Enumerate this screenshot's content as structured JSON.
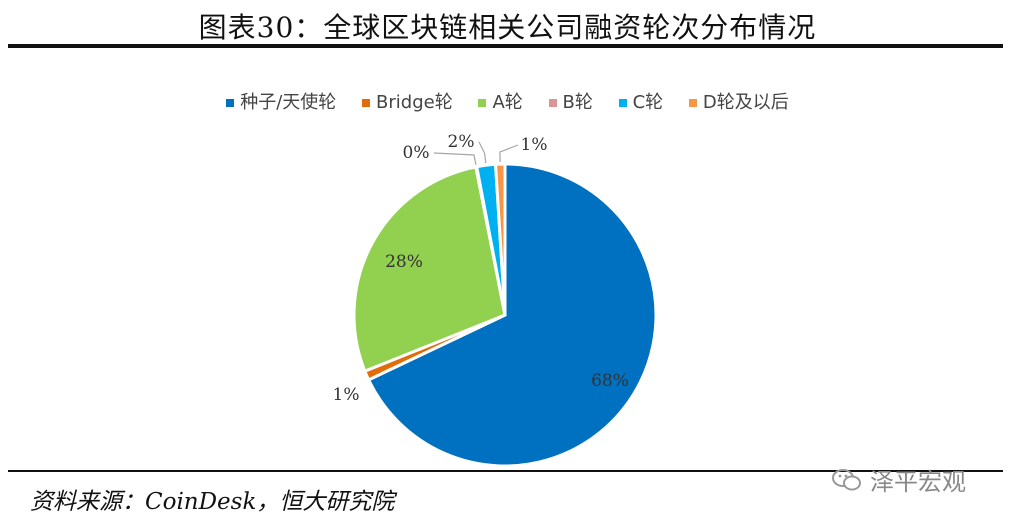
{
  "figure": {
    "title": "图表30：全球区块链相关公司融资轮次分布情况",
    "source": "资料来源：CoinDesk，恒大研究院",
    "watermark": "泽平宏观"
  },
  "chart_data": {
    "type": "pie",
    "title": "图表30：全球区块链相关公司融资轮次分布情况",
    "legend_position": "top",
    "categories": [
      "种子/天使轮",
      "Bridge轮",
      "A轮",
      "B轮",
      "C轮",
      "D轮及以后"
    ],
    "values": [
      68,
      1,
      28,
      0,
      2,
      1
    ],
    "labels": [
      "68%",
      "1%",
      "28%",
      "0%",
      "2%",
      "1%"
    ],
    "colors": [
      "#0070C0",
      "#E26B0A",
      "#92D050",
      "#D99694",
      "#00B0F0",
      "#F79646"
    ]
  }
}
